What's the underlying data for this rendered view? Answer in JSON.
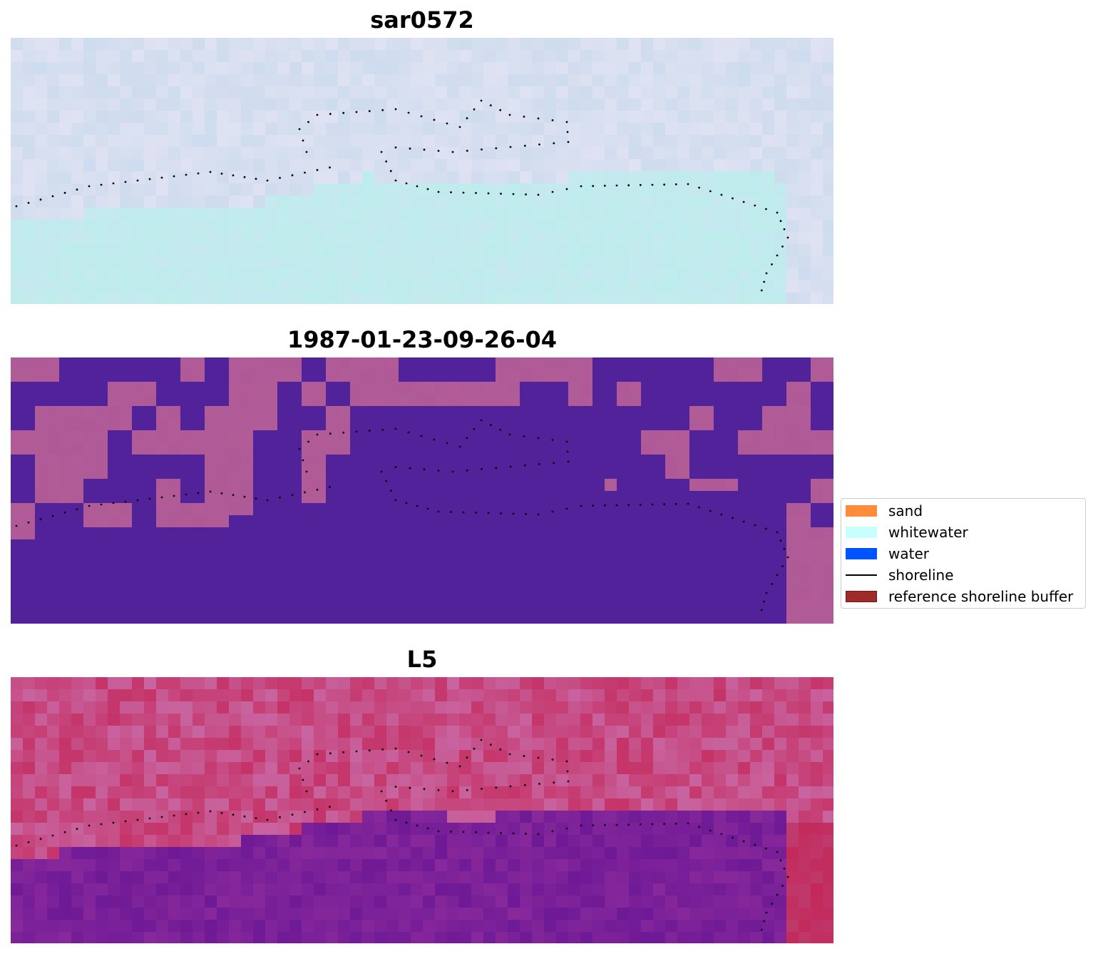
{
  "panels": [
    {
      "title": "sar0572",
      "palette": "sar"
    },
    {
      "title": "1987-01-23-09-26-04",
      "palette": "class"
    },
    {
      "title": "L5",
      "palette": "l5"
    }
  ],
  "legend": {
    "items": [
      {
        "label": "sand",
        "color": "#ff8c3a",
        "kind": "patch"
      },
      {
        "label": "whitewater",
        "color": "#c8ffff",
        "kind": "patch"
      },
      {
        "label": "water",
        "color": "#0054ff",
        "kind": "patch"
      },
      {
        "label": "shoreline",
        "color": "#000000",
        "kind": "line"
      },
      {
        "label": "reference shoreline buffer",
        "color": "#9e2a2a",
        "kind": "patch"
      }
    ]
  },
  "colors": {
    "shoreline_dots": "#000000",
    "class_water": "#52229a",
    "class_land": "#b15c97"
  }
}
